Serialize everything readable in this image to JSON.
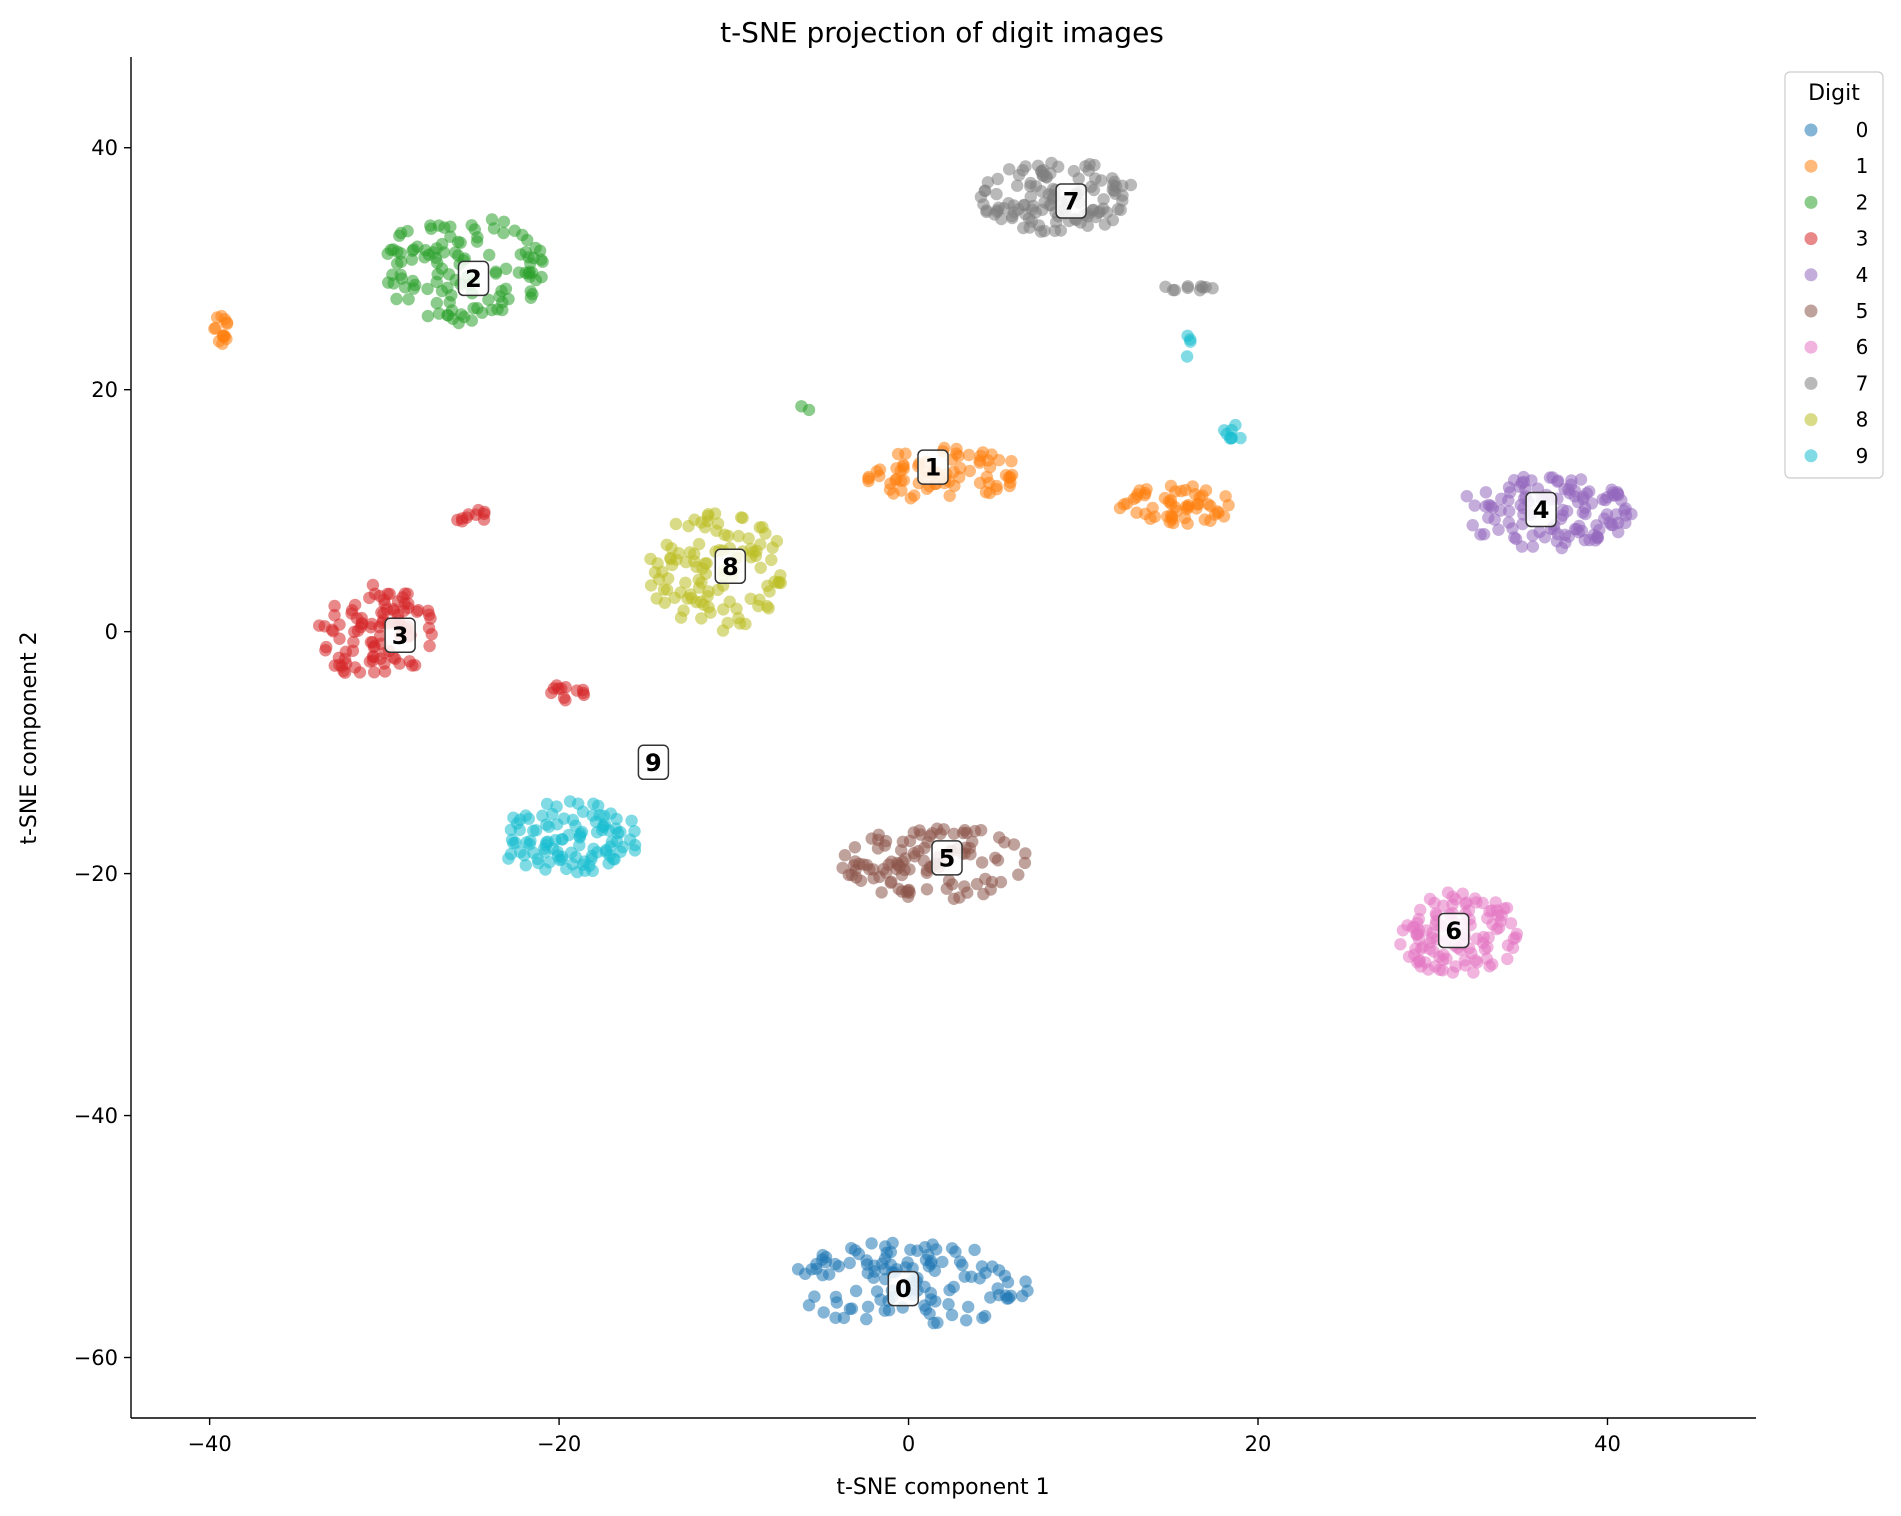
{
  "chart_data": {
    "type": "scatter",
    "title": "t-SNE projection of digit images",
    "xlabel": "t-SNE component 1",
    "ylabel": "t-SNE component 2",
    "xlim": [
      -44.5,
      48.5
    ],
    "ylim": [
      -65,
      47.5
    ],
    "xticks": [
      -40,
      -20,
      0,
      20,
      40
    ],
    "yticks": [
      -60,
      -40,
      -20,
      0,
      20,
      40
    ],
    "grid": false,
    "legend": {
      "title": "Digit",
      "placement": "upper-right-outside"
    },
    "series": [
      {
        "name": "0",
        "color": "#1f77b4",
        "clusters": [
          {
            "center": [
              0,
              -54
            ],
            "spread": [
              7,
              3.6
            ],
            "count": 120
          }
        ]
      },
      {
        "name": "1",
        "color": "#ff7f0e",
        "clusters": [
          {
            "center": [
              2,
              13
            ],
            "spread": [
              4.5,
              2.2
            ],
            "count": 75
          },
          {
            "center": [
              15.5,
              10.5
            ],
            "spread": [
              3.5,
              1.6
            ],
            "count": 55
          },
          {
            "center": [
              -39.2,
              25
            ],
            "spread": [
              0.6,
              1.3
            ],
            "count": 14
          }
        ]
      },
      {
        "name": "2",
        "color": "#2ca02c",
        "clusters": [
          {
            "center": [
              -25.5,
              30
            ],
            "spread": [
              4.7,
              4.5
            ],
            "count": 120
          },
          {
            "center": [
              -6,
              18.5
            ],
            "spread": [
              0.5,
              0.3
            ],
            "count": 2
          }
        ]
      },
      {
        "name": "3",
        "color": "#d62728",
        "clusters": [
          {
            "center": [
              -30.5,
              0
            ],
            "spread": [
              3.4,
              4
            ],
            "count": 100
          },
          {
            "center": [
              -19.5,
              -5
            ],
            "spread": [
              1,
              0.8
            ],
            "count": 12
          },
          {
            "center": [
              -25,
              9.5
            ],
            "spread": [
              1,
              0.7
            ],
            "count": 10
          }
        ]
      },
      {
        "name": "4",
        "color": "#9467bd",
        "clusters": [
          {
            "center": [
              36.5,
              10
            ],
            "spread": [
              5,
              3.2
            ],
            "count": 120
          }
        ]
      },
      {
        "name": "5",
        "color": "#8c564b",
        "clusters": [
          {
            "center": [
              1.5,
              -19
            ],
            "spread": [
              5.5,
              3.2
            ],
            "count": 110
          }
        ]
      },
      {
        "name": "6",
        "color": "#e377c2",
        "clusters": [
          {
            "center": [
              31.5,
              -25
            ],
            "spread": [
              3.5,
              3.5
            ],
            "count": 110
          }
        ]
      },
      {
        "name": "7",
        "color": "#7f7f7f",
        "clusters": [
          {
            "center": [
              8.5,
              36
            ],
            "spread": [
              4.5,
              3
            ],
            "count": 120
          },
          {
            "center": [
              16,
              28.4
            ],
            "spread": [
              1.6,
              0.2
            ],
            "count": 10
          }
        ]
      },
      {
        "name": "8",
        "color": "#bcbd22",
        "clusters": [
          {
            "center": [
              -11,
              5
            ],
            "spread": [
              4,
              5
            ],
            "count": 110
          }
        ]
      },
      {
        "name": "9",
        "color": "#17becf",
        "clusters": [
          {
            "center": [
              -19.5,
              -17
            ],
            "spread": [
              4.2,
              3
            ],
            "count": 105
          },
          {
            "center": [
              18.5,
              16.5
            ],
            "spread": [
              0.6,
              1
            ],
            "count": 8
          },
          {
            "center": [
              16,
              23.5
            ],
            "spread": [
              0.2,
              1
            ],
            "count": 4
          }
        ]
      }
    ],
    "annotations": [
      {
        "label": "0",
        "x": -0.3,
        "y": -54.3
      },
      {
        "label": "1",
        "x": 1.4,
        "y": 13.6
      },
      {
        "label": "2",
        "x": -24.9,
        "y": 29.2
      },
      {
        "label": "3",
        "x": -29.1,
        "y": -0.3
      },
      {
        "label": "4",
        "x": 36.2,
        "y": 10.1
      },
      {
        "label": "5",
        "x": 2.2,
        "y": -18.7
      },
      {
        "label": "6",
        "x": 31.2,
        "y": -24.7
      },
      {
        "label": "7",
        "x": 9.3,
        "y": 35.6
      },
      {
        "label": "8",
        "x": -10.2,
        "y": 5.4
      },
      {
        "label": "9",
        "x": -14.6,
        "y": -10.8
      }
    ]
  }
}
